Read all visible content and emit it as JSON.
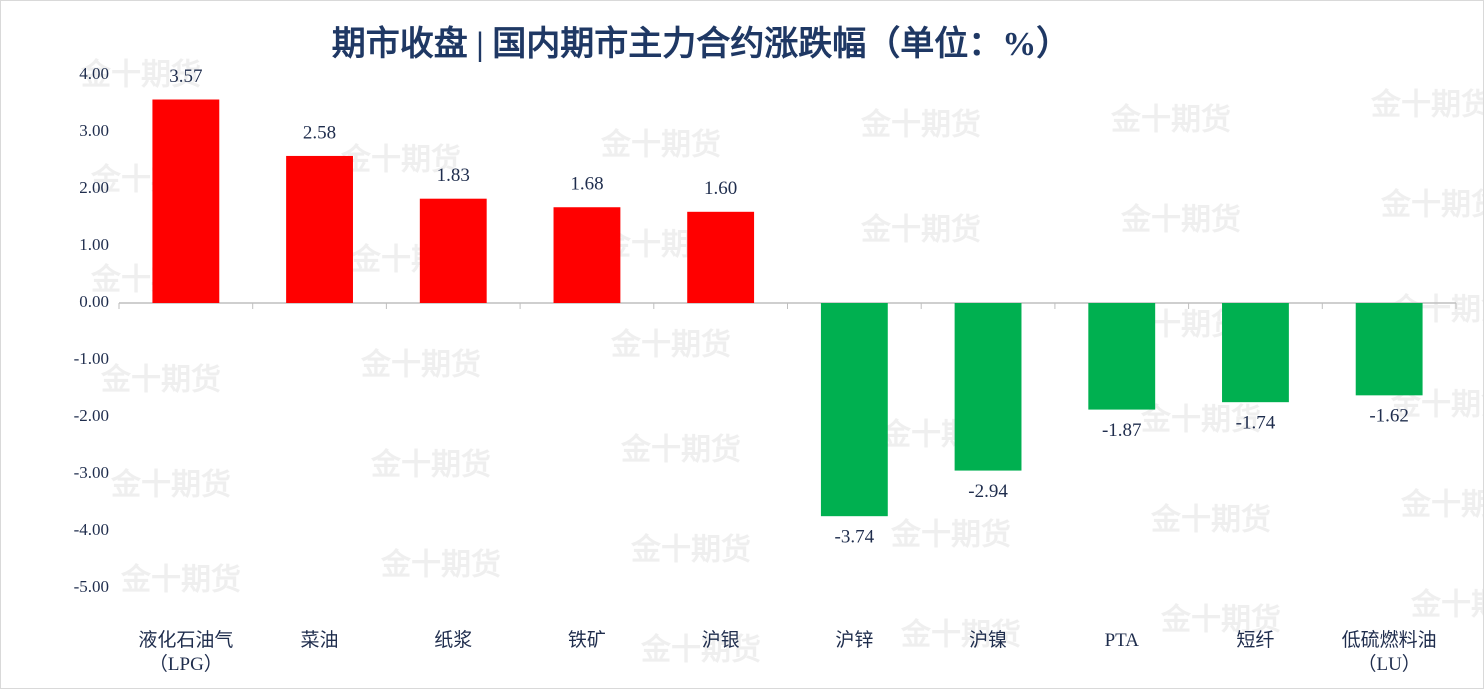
{
  "chart_data": {
    "type": "bar",
    "title": "期市收盘 | 国内期市主力合约涨跌幅（单位：%）",
    "watermark": "金十期货",
    "categories": [
      "液化石油气\n（LPG）",
      "菜油",
      "纸浆",
      "铁矿",
      "沪银",
      "沪锌",
      "沪镍",
      "PTA",
      "短纤",
      "低硫燃料油\n（LU）"
    ],
    "values": [
      3.57,
      2.58,
      1.83,
      1.68,
      1.6,
      -3.74,
      -2.94,
      -1.87,
      -1.74,
      -1.62
    ],
    "value_labels": [
      "3.57",
      "2.58",
      "1.83",
      "1.68",
      "1.60",
      "-3.74",
      "-2.94",
      "-1.87",
      "-1.74",
      "-1.62"
    ],
    "positive_color": "#ff0000",
    "negative_color": "#00b050",
    "ylim": [
      -5,
      4
    ],
    "yticks": [
      {
        "value": 4,
        "label": "4.00"
      },
      {
        "value": 3,
        "label": "3.00"
      },
      {
        "value": 2,
        "label": "2.00"
      },
      {
        "value": 1,
        "label": "1.00"
      },
      {
        "value": 0,
        "label": "0.00"
      },
      {
        "value": -1,
        "label": "-1.00"
      },
      {
        "value": -2,
        "label": "-2.00"
      },
      {
        "value": -3,
        "label": "-3.00"
      },
      {
        "value": -4,
        "label": "-4.00"
      },
      {
        "value": -5,
        "label": "-5.00"
      }
    ],
    "grid": false
  }
}
